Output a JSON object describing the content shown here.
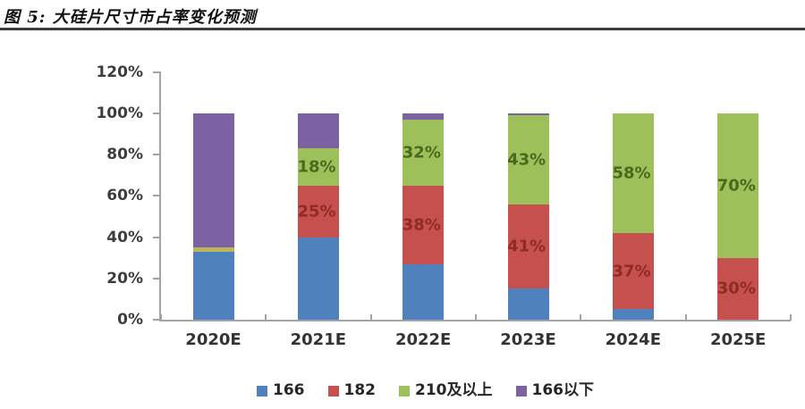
{
  "title": "图 5: 大硅片尺寸市占率变化预测",
  "chart_data": {
    "type": "stacked-bar",
    "title": "图 5: 大硅片尺寸市占率变化预测",
    "categories": [
      "2020E",
      "2021E",
      "2022E",
      "2023E",
      "2024E",
      "2025E"
    ],
    "series": [
      {
        "name": "166",
        "color": "#4f81bd",
        "values": [
          33,
          40,
          27,
          15,
          5,
          0
        ]
      },
      {
        "name": "182",
        "color": "#c6504e",
        "values": [
          0,
          25,
          38,
          41,
          37,
          30
        ]
      },
      {
        "name": "210及以上",
        "color": "#9dc05a",
        "values": [
          2,
          18,
          32,
          43,
          58,
          70
        ]
      },
      {
        "name": "166以下",
        "color": "#7c61a3",
        "values": [
          65,
          17,
          3,
          1,
          0,
          0
        ]
      }
    ],
    "segment_labels": {
      "182": [
        "",
        "25%",
        "38%",
        "41%",
        "37%",
        "30%"
      ],
      "210及以上": [
        "",
        "18%",
        "32%",
        "43%",
        "58%",
        "70%"
      ]
    },
    "label_colors": {
      "182": "#8e2b26",
      "210及以上": "#4a691e"
    },
    "color_overrides": {
      "210及以上": {
        "0": "#bcb559"
      }
    },
    "y_axis": {
      "min": 0,
      "max": 120,
      "tick_step": 20,
      "tick_labels": [
        "0%",
        "20%",
        "40%",
        "60%",
        "80%",
        "100%",
        "120%"
      ]
    },
    "legend": [
      "166",
      "182",
      "210及以上",
      "166以下"
    ],
    "legend_position": "bottom",
    "grid": false
  }
}
